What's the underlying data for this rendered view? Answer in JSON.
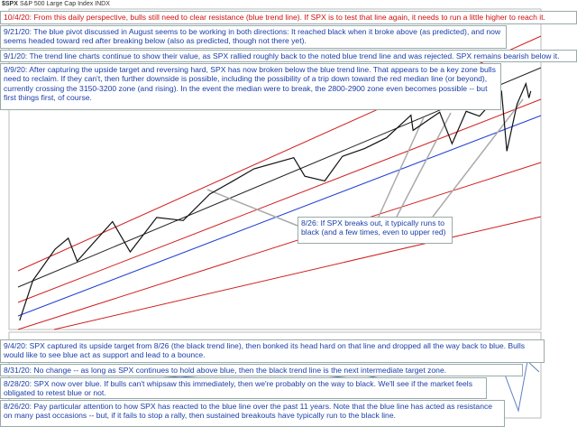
{
  "chart_data": {
    "type": "line",
    "title": "$SPX",
    "subtitle": "S&P 500 Large Cap Index INDX",
    "log_scale": true,
    "xlim": [
      2009,
      2020.95
    ],
    "ylim": [
      650,
      5000
    ],
    "series": [
      {
        "name": "SPX",
        "color": "#111111",
        "x": [
          2009.2,
          2009.5,
          2010.0,
          2010.3,
          2010.5,
          2011.3,
          2011.7,
          2012.3,
          2012.9,
          2013.5,
          2014.0,
          2014.5,
          2015.4,
          2015.65,
          2016.1,
          2016.5,
          2017.0,
          2017.5,
          2018.05,
          2018.1,
          2018.7,
          2018.98,
          2019.3,
          2019.6,
          2020.1,
          2020.22,
          2020.45,
          2020.65,
          2020.72,
          2020.76
        ],
        "values": [
          680,
          900,
          1120,
          1210,
          1030,
          1360,
          1100,
          1400,
          1370,
          1650,
          1800,
          1970,
          2130,
          1870,
          1810,
          2150,
          2270,
          2450,
          2870,
          2580,
          2930,
          2350,
          2950,
          2850,
          3390,
          2230,
          3100,
          3580,
          3240,
          3400
        ]
      }
    ],
    "annotations": [
      "10/4/20:  From this daily perspective, bulls still need to clear resistance (blue trend line).  If SPX is to test that line again, it needs to run a little higher to reach it.",
      "9/21/20:  The blue pivot discussed in August seems to be working in both directions:  It reached black when it broke above (as predicted), and now seems headed toward red after breaking below (also as predicted, though not there yet).",
      "9/1/20:  The trend line charts continue to show their value, as SPX rallied roughly back to the noted blue trend line and was rejected.  SPX remains bearish below it.",
      "9/9/20:  After capturing the upside target and reversing hard, SPX has now broken below the blue trend line.  That appears to be a key zone bulls need to reclaim.  If they can't, then further downside is possible, including the possibility of a trip down toward the red median line (or beyond), currently crossing the 3150-3200 zone (and rising).  In the event the median were to break, the 2800-2900 zone even becomes possible -- but first things first, of course.",
      "8/26: If SPX breaks out, it typically runs to black (and a few times, even to upper red)",
      "9/4/20:  SPX captured its upside target from 8/26 (the black trend line), then bonked its head hard on that line and dropped all the way back to blue.  Bulls would like to see blue act as support and lead to a bounce.",
      "8/31/20:  No change -- as long as SPX continues to hold above blue, then the black trend line is the next intermediate target zone.",
      "8/28/20:  SPX now over blue.  If bulls can't whipsaw this immediately, then we're probably on the way to black.  We'll see if the market feels obligated to retest blue or not.",
      "8/26/20:  Pay particular attention to how SPX has reacted to the blue line over the past 11 years.  Note that the blue line has acted as resistance on many past occasions -- but, if it fails to stop a rally, then sustained breakouts have typically run to the black line."
    ]
  }
}
